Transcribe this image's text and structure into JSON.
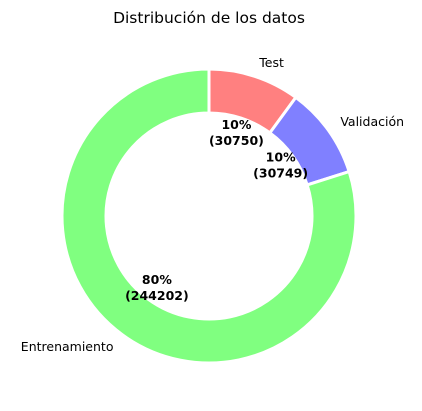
{
  "chart_data": {
    "type": "pie",
    "style": "donut",
    "title": "Distribución de los datos",
    "start_angle_deg": 90,
    "direction": "clockwise",
    "slices": [
      {
        "label": "Test",
        "value": 30750,
        "percent_text": "10%",
        "count_text": "(30750)",
        "color": "#ff8080"
      },
      {
        "label": "Validación",
        "value": 30749,
        "percent_text": "10%",
        "count_text": "(30749)",
        "color": "#8080ff"
      },
      {
        "label": "Entrenamiento",
        "value": 244202,
        "percent_text": "80%",
        "count_text": "(244202)",
        "color": "#80ff80"
      }
    ]
  }
}
